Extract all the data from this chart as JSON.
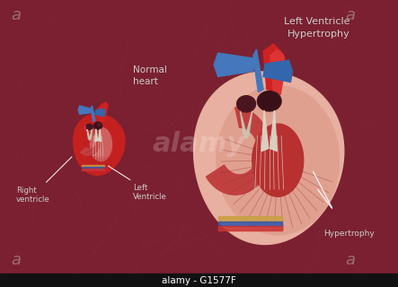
{
  "bg_color": "#7a2030",
  "bg_vein_color": "#8a2535",
  "title_text": "Left Ventricle\nHypertrophy",
  "label_normal": "Normal\nheart",
  "label_right_v": "Right\nventricle",
  "label_left_v": "Left\nVentricle",
  "label_hypertrophy": "Hypertrophy",
  "stock_code": "alamy - G1577F",
  "red_dark": "#8b1a1a",
  "red_mid": "#b52020",
  "red_bright": "#cc2222",
  "blue_dark": "#2255aa",
  "blue_mid": "#4488cc",
  "dark_chamber": "#3a1018",
  "dark_chamber2": "#5a1520",
  "pink_muscle": "#e8a898",
  "pink_light": "#f0c0b0",
  "cream_valve": "#e8ddd0",
  "off_white": "#d8cfc0",
  "yellow_band": "#c8a040",
  "blue_band": "#3355aa",
  "label_color": "#cccccc",
  "watermark_color": "#cccccc",
  "bottom_bar": "#111111"
}
